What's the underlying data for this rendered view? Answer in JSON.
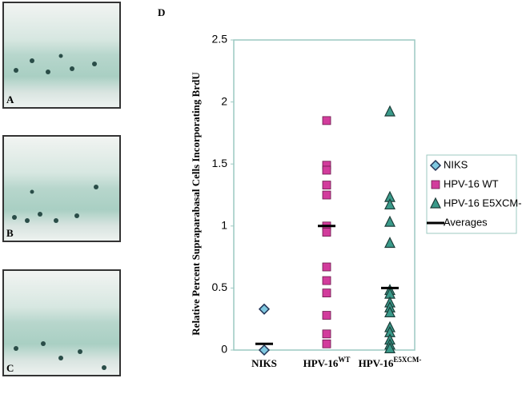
{
  "panels": [
    "A",
    "B",
    "C"
  ],
  "chart_data": {
    "type": "strip",
    "panel_label": "D",
    "y_label": "Relative Percent Supraparabasal  Cells Incorporating BrdU",
    "categories": [
      "NIKS",
      "HPV-16",
      "HPV-16"
    ],
    "category_superscripts": [
      null,
      "WT",
      "E5XCM-"
    ],
    "ylim": [
      0,
      2.5
    ],
    "yticks": [
      0,
      0.5,
      1,
      1.5,
      2,
      2.5
    ],
    "series": [
      {
        "name": "NIKS",
        "color": "#7fc8e0",
        "marker": "diamond",
        "values": [
          0.33,
          0.0
        ]
      },
      {
        "name": "HPV-16 WT",
        "color": "#d23c9c",
        "marker": "square",
        "values": [
          1.85,
          1.49,
          1.45,
          1.33,
          1.25,
          1.0,
          0.95,
          0.67,
          0.56,
          0.46,
          0.28,
          0.13,
          0.05
        ]
      },
      {
        "name": "HPV-16 E5XCM-",
        "color": "#3a9a8a",
        "marker": "triangle",
        "values": [
          1.92,
          1.23,
          1.17,
          1.03,
          0.86,
          0.48,
          0.45,
          0.38,
          0.34,
          0.3,
          0.18,
          0.14,
          0.08,
          0.04,
          0.01
        ]
      },
      {
        "name": "Averages",
        "color": "#000000",
        "marker": "dash",
        "values": [
          0.05,
          1.0,
          0.5
        ]
      }
    ]
  }
}
